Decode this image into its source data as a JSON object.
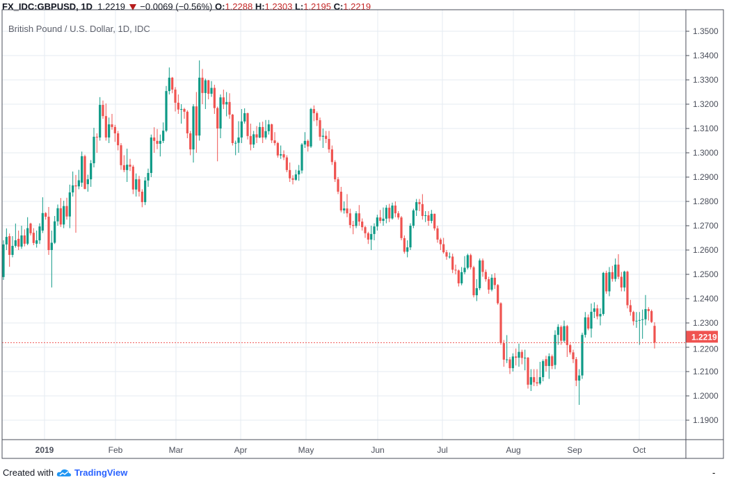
{
  "header": {
    "symbol": "FX_IDC:GBPUSD, 1D",
    "last": "1.2219",
    "direction_icon": "triangle-down-icon",
    "change": "−0.0069 (−0.56%)",
    "o_label": "O:",
    "o": "1.2288",
    "h_label": "H:",
    "h": "1.2303",
    "l_label": "L:",
    "l": "1.2195",
    "c_label": "C:",
    "c": "1.2219"
  },
  "subtitle": "British Pound / U.S. Dollar, 1D, IDC",
  "footer": {
    "created_with": "Created with",
    "brand": "TradingView",
    "logo_icon": "tradingview-cloud-icon",
    "dash": "-"
  },
  "colors": {
    "up": "#0e9a86",
    "down": "#ef5350",
    "grid": "#e4ebf2",
    "axis": "#4a4e5a"
  },
  "chart_data": {
    "type": "candlestick",
    "title": "British Pound / U.S. Dollar, 1D, IDC",
    "ylim": [
      1.185,
      1.359
    ],
    "y_ticks": [
      "1.3500",
      "1.3400",
      "1.3300",
      "1.3200",
      "1.3100",
      "1.3000",
      "1.2900",
      "1.2800",
      "1.2700",
      "1.2600",
      "1.2500",
      "1.2400",
      "1.2300",
      "1.2200",
      "1.2100",
      "1.2000",
      "1.1900"
    ],
    "x_ticks": [
      "2019",
      "Feb",
      "Mar",
      "Apr",
      "May",
      "Jun",
      "Jul",
      "Aug",
      "Sep",
      "Oct"
    ],
    "grid": true,
    "last_price_label": "1.2219",
    "candle_fields": [
      "open",
      "high",
      "low",
      "close"
    ],
    "candles": [
      [
        1.2489,
        1.264,
        1.2477,
        1.2623
      ],
      [
        1.2623,
        1.2689,
        1.26,
        1.2654
      ],
      [
        1.2657,
        1.2668,
        1.2531,
        1.258
      ],
      [
        1.258,
        1.2657,
        1.257,
        1.2617
      ],
      [
        1.2617,
        1.2709,
        1.261,
        1.264
      ],
      [
        1.2646,
        1.268,
        1.26,
        1.2614
      ],
      [
        1.2614,
        1.27,
        1.2605,
        1.266
      ],
      [
        1.266,
        1.2685,
        1.2615,
        1.2626
      ],
      [
        1.2626,
        1.2735,
        1.262,
        1.269
      ],
      [
        1.2709,
        1.2712,
        1.266,
        1.2669
      ],
      [
        1.2671,
        1.269,
        1.262,
        1.2629
      ],
      [
        1.2626,
        1.268,
        1.261,
        1.264
      ],
      [
        1.264,
        1.271,
        1.2625,
        1.2697
      ],
      [
        1.268,
        1.2817,
        1.267,
        1.2752
      ],
      [
        1.2752,
        1.2756,
        1.2725,
        1.2737
      ],
      [
        1.2737,
        1.2777,
        1.258,
        1.26
      ],
      [
        1.26,
        1.268,
        1.2446,
        1.263
      ],
      [
        1.263,
        1.274,
        1.2625,
        1.2718
      ],
      [
        1.2718,
        1.2787,
        1.27,
        1.2772
      ],
      [
        1.2772,
        1.2814,
        1.2695,
        1.2705
      ],
      [
        1.2705,
        1.2803,
        1.269,
        1.2781
      ],
      [
        1.2781,
        1.2815,
        1.2725,
        1.2738
      ],
      [
        1.2738,
        1.2869,
        1.269,
        1.2837
      ],
      [
        1.2837,
        1.2923,
        1.282,
        1.2866
      ],
      [
        1.2866,
        1.2909,
        1.2671,
        1.2862
      ],
      [
        1.2862,
        1.293,
        1.285,
        1.2887
      ],
      [
        1.2877,
        1.3005,
        1.286,
        1.2986
      ],
      [
        1.2986,
        1.2992,
        1.285,
        1.2851
      ],
      [
        1.2871,
        1.291,
        1.284,
        1.2891
      ],
      [
        1.2891,
        1.297,
        1.286,
        1.2957
      ],
      [
        1.2957,
        1.3103,
        1.294,
        1.3066
      ],
      [
        1.3066,
        1.308,
        1.3,
        1.3063
      ],
      [
        1.3063,
        1.3229,
        1.305,
        1.3197
      ],
      [
        1.3197,
        1.3215,
        1.314,
        1.3151
      ],
      [
        1.3151,
        1.3203,
        1.305,
        1.3063
      ],
      [
        1.3063,
        1.3145,
        1.304,
        1.3117
      ],
      [
        1.3117,
        1.316,
        1.3095,
        1.3106
      ],
      [
        1.3106,
        1.3115,
        1.3045,
        1.308
      ],
      [
        1.308,
        1.309,
        1.301,
        1.3031
      ],
      [
        1.3031,
        1.304,
        1.293,
        1.2949
      ],
      [
        1.2949,
        1.299,
        1.292,
        1.2929
      ],
      [
        1.2929,
        1.3017,
        1.288,
        1.2951
      ],
      [
        1.2951,
        1.2975,
        1.2925,
        1.2943
      ],
      [
        1.2943,
        1.295,
        1.283,
        1.2849
      ],
      [
        1.2849,
        1.2915,
        1.282,
        1.2891
      ],
      [
        1.2891,
        1.2905,
        1.282,
        1.284
      ],
      [
        1.284,
        1.285,
        1.2776,
        1.2797
      ],
      [
        1.2797,
        1.29,
        1.2785,
        1.2886
      ],
      [
        1.2886,
        1.2935,
        1.286,
        1.2917
      ],
      [
        1.2917,
        1.3075,
        1.29,
        1.3063
      ],
      [
        1.3063,
        1.3105,
        1.3,
        1.3049
      ],
      [
        1.3049,
        1.3098,
        1.3015,
        1.3037
      ],
      [
        1.3037,
        1.3075,
        1.2985,
        1.3049
      ],
      [
        1.3049,
        1.3125,
        1.304,
        1.3091
      ],
      [
        1.3091,
        1.3275,
        1.3085,
        1.3254
      ],
      [
        1.3254,
        1.3351,
        1.324,
        1.3309
      ],
      [
        1.3309,
        1.3312,
        1.3245,
        1.326
      ],
      [
        1.326,
        1.327,
        1.317,
        1.3206
      ],
      [
        1.3206,
        1.324,
        1.316,
        1.3178
      ],
      [
        1.3178,
        1.32,
        1.312,
        1.318
      ],
      [
        1.318,
        1.3185,
        1.314,
        1.3169
      ],
      [
        1.3169,
        1.3175,
        1.306,
        1.308
      ],
      [
        1.308,
        1.309,
        1.299,
        1.3014
      ],
      [
        1.3014,
        1.32,
        1.296,
        1.3191
      ],
      [
        1.3191,
        1.325,
        1.3,
        1.3071
      ],
      [
        1.3071,
        1.338,
        1.305,
        1.3309
      ],
      [
        1.3309,
        1.3345,
        1.32,
        1.3246
      ],
      [
        1.3246,
        1.3305,
        1.318,
        1.3298
      ],
      [
        1.3298,
        1.33,
        1.322,
        1.3243
      ],
      [
        1.3243,
        1.3295,
        1.323,
        1.3267
      ],
      [
        1.3267,
        1.328,
        1.316,
        1.3184
      ],
      [
        1.3184,
        1.319,
        1.2965,
        1.31
      ],
      [
        1.31,
        1.324,
        1.306,
        1.3228
      ],
      [
        1.3228,
        1.326,
        1.318,
        1.3199
      ],
      [
        1.3199,
        1.325,
        1.315,
        1.3209
      ],
      [
        1.3209,
        1.3245,
        1.314,
        1.3157
      ],
      [
        1.3157,
        1.316,
        1.303,
        1.304
      ],
      [
        1.304,
        1.305,
        1.299,
        1.3041
      ],
      [
        1.3041,
        1.313,
        1.3,
        1.3063
      ],
      [
        1.3063,
        1.318,
        1.304,
        1.3129
      ],
      [
        1.3129,
        1.3183,
        1.312,
        1.3163
      ],
      [
        1.3163,
        1.3165,
        1.3055,
        1.3069
      ],
      [
        1.3069,
        1.312,
        1.301,
        1.3034
      ],
      [
        1.3034,
        1.309,
        1.302,
        1.3076
      ],
      [
        1.3076,
        1.311,
        1.304,
        1.3063
      ],
      [
        1.3063,
        1.3125,
        1.306,
        1.3106
      ],
      [
        1.3106,
        1.3128,
        1.304,
        1.3063
      ],
      [
        1.3063,
        1.3135,
        1.3055,
        1.3089
      ],
      [
        1.3089,
        1.3135,
        1.3075,
        1.3117
      ],
      [
        1.3117,
        1.312,
        1.304,
        1.3051
      ],
      [
        1.3051,
        1.3085,
        1.303,
        1.304
      ],
      [
        1.304,
        1.3045,
        1.298,
        1.2989
      ],
      [
        1.2989,
        1.303,
        1.2975,
        1.2994
      ],
      [
        1.2994,
        1.301,
        1.297,
        1.2981
      ],
      [
        1.2981,
        1.299,
        1.292,
        1.2929
      ],
      [
        1.2929,
        1.296,
        1.288,
        1.2895
      ],
      [
        1.2895,
        1.2908,
        1.287,
        1.2889
      ],
      [
        1.2889,
        1.293,
        1.2885,
        1.2911
      ],
      [
        1.2911,
        1.295,
        1.2885,
        1.2927
      ],
      [
        1.2927,
        1.304,
        1.2915,
        1.3034
      ],
      [
        1.3034,
        1.3085,
        1.302,
        1.3049
      ],
      [
        1.3049,
        1.3055,
        1.3005,
        1.3026
      ],
      [
        1.3026,
        1.3185,
        1.302,
        1.318
      ],
      [
        1.318,
        1.3195,
        1.313,
        1.3163
      ],
      [
        1.3163,
        1.317,
        1.311,
        1.3134
      ],
      [
        1.3134,
        1.3145,
        1.305,
        1.3066
      ],
      [
        1.3066,
        1.31,
        1.302,
        1.307
      ],
      [
        1.307,
        1.309,
        1.304,
        1.3057
      ],
      [
        1.3057,
        1.309,
        1.3,
        1.3014
      ],
      [
        1.3014,
        1.303,
        1.295,
        1.2962
      ],
      [
        1.2962,
        1.297,
        1.288,
        1.2891
      ],
      [
        1.2891,
        1.29,
        1.283,
        1.284
      ],
      [
        1.284,
        1.286,
        1.2755,
        1.2763
      ],
      [
        1.2763,
        1.28,
        1.275,
        1.2771
      ],
      [
        1.2771,
        1.283,
        1.2735,
        1.2751
      ],
      [
        1.2751,
        1.277,
        1.269,
        1.2703
      ],
      [
        1.2703,
        1.272,
        1.2665,
        1.2699
      ],
      [
        1.2699,
        1.276,
        1.269,
        1.2751
      ],
      [
        1.2751,
        1.2785,
        1.27,
        1.2717
      ],
      [
        1.2717,
        1.273,
        1.268,
        1.2694
      ],
      [
        1.2694,
        1.27,
        1.265,
        1.2669
      ],
      [
        1.2669,
        1.2675,
        1.2625,
        1.2643
      ],
      [
        1.2643,
        1.27,
        1.26,
        1.2666
      ],
      [
        1.2666,
        1.271,
        1.264,
        1.2697
      ],
      [
        1.2697,
        1.2745,
        1.268,
        1.2734
      ],
      [
        1.2734,
        1.2765,
        1.271,
        1.272
      ],
      [
        1.272,
        1.2775,
        1.27,
        1.2729
      ],
      [
        1.2729,
        1.2785,
        1.271,
        1.2774
      ],
      [
        1.2774,
        1.279,
        1.2715,
        1.273
      ],
      [
        1.273,
        1.2795,
        1.2725,
        1.2783
      ],
      [
        1.2783,
        1.28,
        1.2735,
        1.2751
      ],
      [
        1.2751,
        1.276,
        1.2725,
        1.2734
      ],
      [
        1.2734,
        1.274,
        1.264,
        1.2649
      ],
      [
        1.2649,
        1.266,
        1.2585,
        1.2593
      ],
      [
        1.2593,
        1.264,
        1.257,
        1.2611
      ],
      [
        1.2611,
        1.271,
        1.26,
        1.27
      ],
      [
        1.27,
        1.277,
        1.269,
        1.2763
      ],
      [
        1.2763,
        1.281,
        1.274,
        1.2797
      ],
      [
        1.2797,
        1.281,
        1.276,
        1.2789
      ],
      [
        1.2789,
        1.283,
        1.2725,
        1.274
      ],
      [
        1.274,
        1.276,
        1.2715,
        1.2743
      ],
      [
        1.2743,
        1.276,
        1.27,
        1.272
      ],
      [
        1.272,
        1.2765,
        1.271,
        1.2749
      ],
      [
        1.2749,
        1.275,
        1.268,
        1.2689
      ],
      [
        1.2689,
        1.27,
        1.263,
        1.2643
      ],
      [
        1.2643,
        1.265,
        1.26,
        1.2624
      ],
      [
        1.2624,
        1.265,
        1.2585,
        1.2591
      ],
      [
        1.2591,
        1.26,
        1.256,
        1.2573
      ],
      [
        1.2573,
        1.259,
        1.2565,
        1.2573
      ],
      [
        1.2573,
        1.2585,
        1.2505,
        1.2519
      ],
      [
        1.2519,
        1.254,
        1.25,
        1.2516
      ],
      [
        1.2516,
        1.252,
        1.245,
        1.2463
      ],
      [
        1.2463,
        1.253,
        1.2455,
        1.2509
      ],
      [
        1.2509,
        1.2575,
        1.25,
        1.2527
      ],
      [
        1.2527,
        1.2585,
        1.252,
        1.2579
      ],
      [
        1.2579,
        1.2585,
        1.252,
        1.2529
      ],
      [
        1.2529,
        1.2535,
        1.2405,
        1.2414
      ],
      [
        1.2414,
        1.248,
        1.239,
        1.2443
      ],
      [
        1.2443,
        1.2565,
        1.2435,
        1.2557
      ],
      [
        1.2557,
        1.2565,
        1.249,
        1.251
      ],
      [
        1.251,
        1.252,
        1.247,
        1.248
      ],
      [
        1.248,
        1.249,
        1.242,
        1.2437
      ],
      [
        1.2437,
        1.25,
        1.243,
        1.2486
      ],
      [
        1.2486,
        1.2505,
        1.244,
        1.2456
      ],
      [
        1.2456,
        1.246,
        1.2375,
        1.2381
      ],
      [
        1.2381,
        1.2385,
        1.221,
        1.2217
      ],
      [
        1.2217,
        1.223,
        1.212,
        1.2149
      ],
      [
        1.2149,
        1.225,
        1.2135,
        1.215
      ],
      [
        1.215,
        1.216,
        1.209,
        1.2114
      ],
      [
        1.2114,
        1.2175,
        1.21,
        1.2162
      ],
      [
        1.2162,
        1.2195,
        1.2125,
        1.2157
      ],
      [
        1.2157,
        1.2215,
        1.212,
        1.2181
      ],
      [
        1.2181,
        1.219,
        1.213,
        1.2156
      ],
      [
        1.2156,
        1.219,
        1.2105,
        1.2157
      ],
      [
        1.2157,
        1.216,
        1.203,
        1.2046
      ],
      [
        1.2046,
        1.211,
        1.202,
        1.2077
      ],
      [
        1.2077,
        1.211,
        1.204,
        1.2056
      ],
      [
        1.2056,
        1.211,
        1.204,
        1.2051
      ],
      [
        1.2051,
        1.214,
        1.2045,
        1.2077
      ],
      [
        1.2077,
        1.215,
        1.206,
        1.2143
      ],
      [
        1.2151,
        1.2165,
        1.21,
        1.2123
      ],
      [
        1.2123,
        1.2175,
        1.207,
        1.2163
      ],
      [
        1.2163,
        1.217,
        1.211,
        1.2123
      ],
      [
        1.2127,
        1.227,
        1.211,
        1.2251
      ],
      [
        1.2251,
        1.2295,
        1.221,
        1.2284
      ],
      [
        1.2284,
        1.229,
        1.221,
        1.2227
      ],
      [
        1.2227,
        1.231,
        1.222,
        1.2287
      ],
      [
        1.2287,
        1.2292,
        1.216,
        1.2209
      ],
      [
        1.2209,
        1.2215,
        1.217,
        1.2179
      ],
      [
        1.2179,
        1.219,
        1.2135,
        1.2151
      ],
      [
        1.2151,
        1.216,
        1.204,
        1.2063
      ],
      [
        1.2063,
        1.211,
        1.1963,
        1.2084
      ],
      [
        1.2084,
        1.226,
        1.207,
        1.2251
      ],
      [
        1.2251,
        1.2345,
        1.224,
        1.2323
      ],
      [
        1.2323,
        1.2335,
        1.227,
        1.2277
      ],
      [
        1.2277,
        1.238,
        1.224,
        1.2346
      ],
      [
        1.2346,
        1.2385,
        1.232,
        1.236
      ],
      [
        1.236,
        1.2375,
        1.2315,
        1.2327
      ],
      [
        1.2327,
        1.236,
        1.229,
        1.2337
      ],
      [
        1.2337,
        1.251,
        1.233,
        1.2506
      ],
      [
        1.2506,
        1.2515,
        1.242,
        1.243
      ],
      [
        1.243,
        1.253,
        1.241,
        1.2509
      ],
      [
        1.2509,
        1.2535,
        1.247,
        1.2481
      ],
      [
        1.2481,
        1.2565,
        1.247,
        1.254
      ],
      [
        1.254,
        1.2583,
        1.248,
        1.249
      ],
      [
        1.249,
        1.251,
        1.243,
        1.2446
      ],
      [
        1.2446,
        1.2515,
        1.243,
        1.2511
      ],
      [
        1.2511,
        1.2515,
        1.236,
        1.2373
      ],
      [
        1.2373,
        1.2395,
        1.233,
        1.2345
      ],
      [
        1.2345,
        1.235,
        1.229,
        1.2307
      ],
      [
        1.2307,
        1.2345,
        1.228,
        1.2309
      ],
      [
        1.2309,
        1.2345,
        1.221,
        1.2312
      ],
      [
        1.2312,
        1.2355,
        1.2235,
        1.2315
      ],
      [
        1.2315,
        1.2415,
        1.229,
        1.2357
      ],
      [
        1.2357,
        1.2365,
        1.231,
        1.2349
      ],
      [
        1.2349,
        1.2355,
        1.23,
        1.2304
      ],
      [
        1.2288,
        1.2303,
        1.2195,
        1.2219
      ]
    ]
  }
}
